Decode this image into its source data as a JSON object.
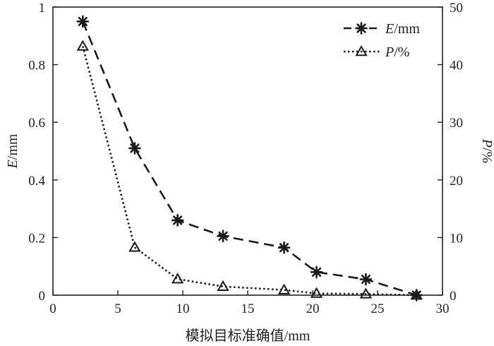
{
  "chart_data": {
    "type": "line",
    "title": "",
    "xlabel": "模拟目标准确值/mm",
    "ylabel_left": "E/mm",
    "ylabel_left_var": "E",
    "ylabel_left_unit": "/mm",
    "ylabel_right": "P/%",
    "ylabel_right_var": "P",
    "ylabel_right_unit": "/%",
    "xlim": [
      0,
      30
    ],
    "ylim_left": [
      0,
      1
    ],
    "ylim_right": [
      0,
      50
    ],
    "x_ticks": [
      0,
      5,
      10,
      15,
      20,
      25,
      30
    ],
    "y_left_ticks": [
      0,
      0.2,
      0.4,
      0.6,
      0.8,
      1
    ],
    "y_left_tick_labels": [
      "0",
      "0.2",
      "0.4",
      "0.6",
      "0.8",
      "1"
    ],
    "y_right_ticks": [
      0,
      10,
      20,
      30,
      40,
      50
    ],
    "grid": false,
    "legend_position": "top-right",
    "series": [
      {
        "name": "E/mm",
        "name_var": "E",
        "name_unit": "/mm",
        "axis": "left",
        "line_style": "dashed",
        "marker": "asterisk",
        "x": [
          2.3,
          6.3,
          9.6,
          13.1,
          17.8,
          20.3,
          24.1,
          28
        ],
        "values": [
          0.95,
          0.51,
          0.26,
          0.205,
          0.165,
          0.08,
          0.055,
          0
        ]
      },
      {
        "name": "P/%",
        "name_var": "P",
        "name_unit": "/%",
        "axis": "right",
        "line_style": "dotted",
        "marker": "triangle",
        "x": [
          2.3,
          6.3,
          9.6,
          13.1,
          17.8,
          20.3,
          24.1,
          28
        ],
        "values": [
          43.2,
          8.3,
          2.8,
          1.5,
          0.9,
          0.3,
          0.2,
          0
        ]
      }
    ]
  }
}
